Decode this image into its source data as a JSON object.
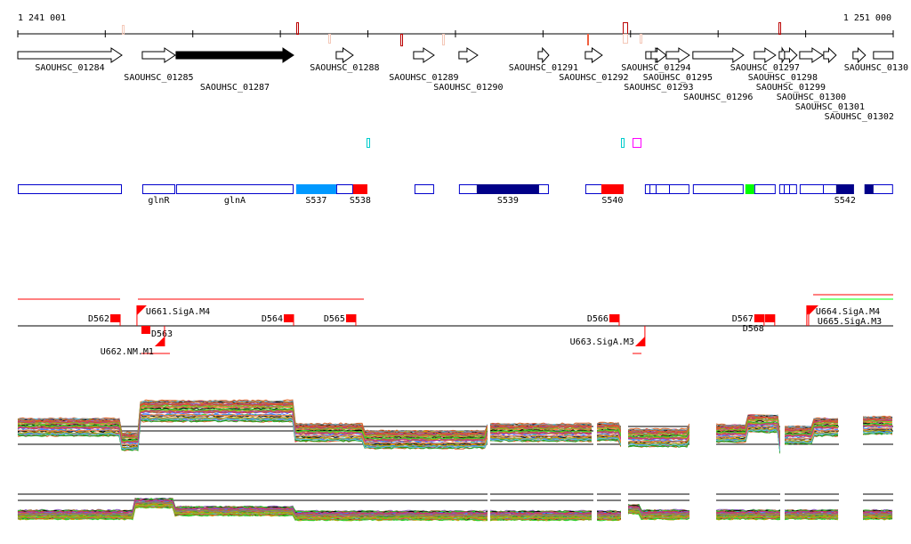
{
  "ruler": {
    "start_label": "1 241 001",
    "end_label": "1 251 000",
    "start_bp": 1241001,
    "end_bp": 1251000,
    "tick_step_bp": 1000
  },
  "colors": {
    "gene_fill": "#ffffff",
    "selected_gene_fill": "#000000",
    "segment_border": "#0000cc",
    "feature_red": "#ff0000",
    "feature_green": "#00ff00",
    "light_blue": "#0099ff",
    "navy": "#000088"
  },
  "genes": [
    {
      "name": "SAOUHSC_01284",
      "start": 1241001,
      "end": 1242190,
      "row": 0
    },
    {
      "name": "SAOUHSC_01285",
      "start": 1242423,
      "end": 1242799,
      "row": 1
    },
    {
      "name": "SAOUHSC_01287",
      "start": 1242809,
      "end": 1244151,
      "row": 2,
      "selected": true
    },
    {
      "name": "SAOUHSC_01288",
      "start": 1244638,
      "end": 1244831,
      "row": 0
    },
    {
      "name": "SAOUHSC_01289",
      "start": 1245522,
      "end": 1245756,
      "row": 1
    },
    {
      "name": "SAOUHSC_01290",
      "start": 1246040,
      "end": 1246254,
      "row": 2
    },
    {
      "name": "SAOUHSC_01291",
      "start": 1246945,
      "end": 1247067,
      "row": 0
    },
    {
      "name": "SAOUHSC_01292",
      "start": 1247483,
      "end": 1247676,
      "row": 1
    },
    {
      "name": "SAOUHSC_01294",
      "start": 1248174,
      "end": 1248408,
      "row": 0
    },
    {
      "name": "SAOUHSC_01293",
      "start": 1248235,
      "end": 1248408,
      "row": 2
    },
    {
      "name": "SAOUHSC_01295",
      "start": 1248408,
      "end": 1248672,
      "row": 1
    },
    {
      "name": "SAOUHSC_01296",
      "start": 1248712,
      "end": 1249291,
      "row": 2
    },
    {
      "name": "SAOUHSC_01297",
      "start": 1249413,
      "end": 1249657,
      "row": 0
    },
    {
      "name": "SAOUHSC_01298",
      "start": 1249698,
      "end": 1249779,
      "row": 1
    },
    {
      "name": "SAOUHSC_01299",
      "start": 1249759,
      "end": 1249901,
      "row": 2
    },
    {
      "name": "SAOUHSC_01300",
      "start": 1249932,
      "end": 1250196,
      "row": 0
    },
    {
      "name": "SAOUHSC_01301",
      "start": 1250206,
      "end": 1250348,
      "row": 1
    },
    {
      "name": "SAOUHSC_01302",
      "start": 1250541,
      "end": 1250683,
      "row": 2
    },
    {
      "name": "SAOUHSC_0130",
      "start": 1250775,
      "end": 1250998,
      "row": 0,
      "open": true
    }
  ],
  "segments": [
    {
      "label": "",
      "start": 1241001,
      "end": 1242190
    },
    {
      "label": "glnR",
      "start": 1242423,
      "end": 1242799
    },
    {
      "label": "glnA",
      "start": 1242809,
      "end": 1244151
    },
    {
      "label": "S537",
      "start": 1244181,
      "end": 1244638,
      "fill": "#0099ff"
    },
    {
      "label": "",
      "start": 1244638,
      "end": 1244831
    },
    {
      "label": "S538",
      "start": 1244831,
      "end": 1244994,
      "fill": "#ff0000"
    },
    {
      "label": "",
      "start": 1245532,
      "end": 1245756
    },
    {
      "label": "",
      "start": 1246040,
      "end": 1247067
    },
    {
      "label": "S539",
      "start": 1246243,
      "end": 1246955,
      "fill": "#000088"
    },
    {
      "label": "",
      "start": 1247483,
      "end": 1247920
    },
    {
      "label": "S540",
      "start": 1247666,
      "end": 1247920,
      "fill": "#ff0000"
    },
    {
      "label": "",
      "start": 1248164,
      "end": 1248672
    },
    {
      "label": "",
      "start": 1248712,
      "end": 1249291
    },
    {
      "label": "",
      "start": 1249311,
      "end": 1249413,
      "fill": "#00ff00"
    },
    {
      "label": "",
      "start": 1249413,
      "end": 1249657
    },
    {
      "label": "",
      "start": 1249698,
      "end": 1249901
    },
    {
      "label": "",
      "start": 1249932,
      "end": 1250551
    },
    {
      "label": "S542",
      "start": 1250348,
      "end": 1250551,
      "fill": "#000088"
    },
    {
      "label": "",
      "start": 1250673,
      "end": 1250998
    },
    {
      "label": "",
      "start": 1250673,
      "end": 1250775,
      "fill": "#000088"
    }
  ],
  "features": [
    {
      "label": "D562",
      "pos": 1242170,
      "side": "top"
    },
    {
      "label": "U661.SigA.M4",
      "pos": 1242362,
      "side": "top-start"
    },
    {
      "label": "D563",
      "pos": 1242413,
      "side": "bottom"
    },
    {
      "label": "U662.NM.M1",
      "pos": 1242677,
      "side": "bottom-start"
    },
    {
      "label": "D564",
      "pos": 1244151,
      "side": "top"
    },
    {
      "label": "D565",
      "pos": 1244862,
      "side": "top"
    },
    {
      "label": "D566",
      "pos": 1247870,
      "side": "top"
    },
    {
      "label": "U663.SigA.M3",
      "pos": 1248164,
      "side": "bottom-start"
    },
    {
      "label": "D567",
      "pos": 1249525,
      "side": "top"
    },
    {
      "label": "D568",
      "pos": 1249647,
      "side": "top"
    },
    {
      "label": "U664.SigA.M4",
      "pos": 1250013,
      "side": "top-start"
    },
    {
      "label": "U665.SigA.M3",
      "pos": 1250034,
      "side": "top-start"
    }
  ]
}
